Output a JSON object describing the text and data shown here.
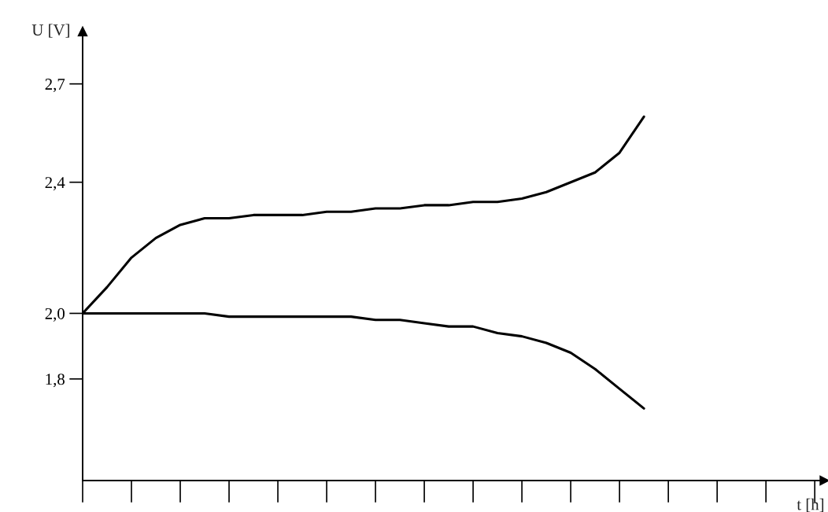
{
  "chart_data": {
    "type": "line",
    "xlabel": "t [h]",
    "ylabel": "U [V]",
    "categories": [
      null,
      null,
      null,
      null,
      null,
      null,
      null,
      null,
      null,
      null,
      null,
      null,
      null,
      null,
      null,
      null,
      null,
      null,
      null,
      null,
      null,
      null,
      null,
      null,
      null,
      null,
      null,
      null,
      null,
      null,
      null
    ],
    "series": [
      {
        "color": "#000000",
        "values": [
          2.0,
          2.08,
          2.17,
          2.23,
          2.27,
          2.29,
          2.29,
          2.3,
          2.3,
          2.3,
          2.31,
          2.31,
          2.32,
          2.32,
          2.33,
          2.33,
          2.34,
          2.34,
          2.35,
          2.37,
          2.4,
          2.43,
          2.49,
          2.6,
          null,
          null,
          null,
          null,
          null,
          null,
          null
        ]
      },
      {
        "color": "#000000",
        "values": [
          2.0,
          2.0,
          2.0,
          2.0,
          2.0,
          2.0,
          1.99,
          1.99,
          1.99,
          1.99,
          1.99,
          1.99,
          1.98,
          1.98,
          1.97,
          1.96,
          1.96,
          1.94,
          1.93,
          1.91,
          1.88,
          1.83,
          1.77,
          1.71,
          null,
          null,
          null,
          null,
          null,
          null,
          null
        ]
      }
    ],
    "ylim": [
      1.49,
      2.86
    ],
    "yticks": [
      {
        "value": 1.8,
        "label": "1,8"
      },
      {
        "value": 2.0,
        "label": "2,0"
      },
      {
        "value": 2.4,
        "label": "2,4"
      },
      {
        "value": 2.7,
        "label": "2,7"
      }
    ],
    "grid": false,
    "legend": false,
    "marker": "none",
    "line_style": "solid"
  }
}
